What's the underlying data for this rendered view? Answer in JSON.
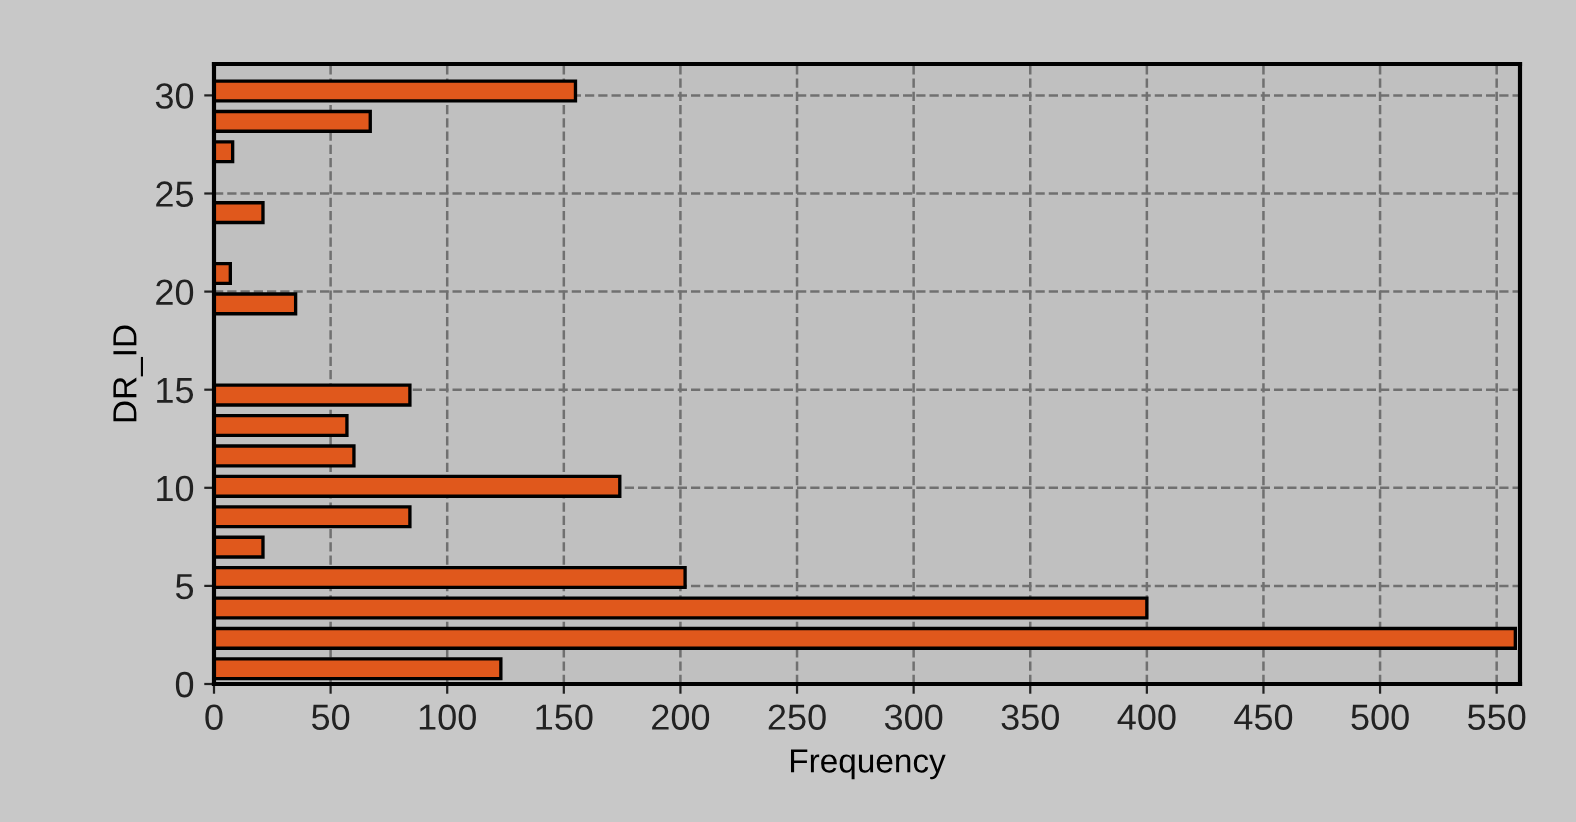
{
  "chart_data": {
    "type": "histogram",
    "orientation": "horizontal",
    "xlabel": "Frequency",
    "ylabel": "DR_ID",
    "bins": [
      0,
      1.55,
      3.1,
      4.65,
      6.2,
      7.75,
      9.3,
      10.85,
      12.4,
      13.95,
      15.5,
      17.05,
      18.6,
      20.15,
      21.7,
      23.25,
      24.8,
      26.35,
      27.9,
      29.45,
      31
    ],
    "values": [
      123,
      558,
      400,
      202,
      21,
      84,
      174,
      60,
      57,
      84,
      0,
      0,
      35,
      7,
      0,
      21,
      0,
      8,
      67,
      155
    ],
    "color": "#e0581c",
    "xlim": [
      0,
      560
    ],
    "xticks": [
      0,
      50,
      100,
      150,
      200,
      250,
      300,
      350,
      400,
      450,
      500,
      550
    ],
    "ylim": [
      0,
      31.6
    ],
    "yticks": [
      0,
      5,
      10,
      15,
      20,
      25,
      30
    ],
    "grid": true
  }
}
